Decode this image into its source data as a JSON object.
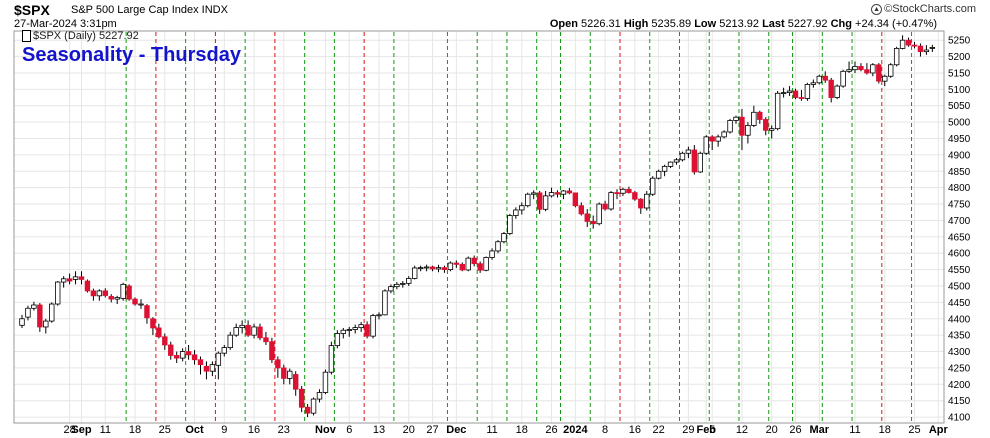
{
  "header": {
    "symbol": "$SPX",
    "description": "S&P 500 Large Cap Index INDX",
    "datetime": "27-Mar-2024 3:31pm",
    "brand": "©StockCharts.com",
    "ohlc": {
      "open_label": "Open",
      "open": "5226.31",
      "high_label": "High",
      "high": "5235.89",
      "low_label": "Low",
      "low": "5213.92",
      "last_label": "Last",
      "last": "5227.92",
      "chg_label": "Chg",
      "chg": "+24.34 (+0.47%)"
    }
  },
  "legend": {
    "label": "$SPX (Daily) 5227.92"
  },
  "overlay_title": "Seasonality - Thursday",
  "colors": {
    "up": "#ffffff",
    "down": "#dd1133",
    "outline": "#000000",
    "green_line": "#119911",
    "red_line": "#dd1111",
    "grid": "#e6e6e6",
    "title": "#1414cc"
  },
  "chart_data": {
    "type": "candlestick",
    "title": "Seasonality - Thursday",
    "series_name": "$SPX (Daily) 5227.92",
    "ylim": [
      4085,
      5275
    ],
    "y_ticks": [
      4100,
      4150,
      4200,
      4250,
      4300,
      4350,
      4400,
      4450,
      4500,
      4550,
      4600,
      4650,
      4700,
      4750,
      4800,
      4850,
      4900,
      4950,
      5000,
      5050,
      5100,
      5150,
      5200,
      5250
    ],
    "x_ticks": [
      {
        "i": 8,
        "label": "28"
      },
      {
        "i": 10,
        "label": "Sep",
        "bold": true
      },
      {
        "i": 14,
        "label": "11"
      },
      {
        "i": 19,
        "label": "18"
      },
      {
        "i": 24,
        "label": "25"
      },
      {
        "i": 29,
        "label": "Oct",
        "bold": true
      },
      {
        "i": 34,
        "label": "9"
      },
      {
        "i": 39,
        "label": "16"
      },
      {
        "i": 44,
        "label": "23"
      },
      {
        "i": 51,
        "label": "Nov",
        "bold": true
      },
      {
        "i": 55,
        "label": "6"
      },
      {
        "i": 60,
        "label": "13"
      },
      {
        "i": 65,
        "label": "20"
      },
      {
        "i": 69,
        "label": "27"
      },
      {
        "i": 73,
        "label": "Dec",
        "bold": true
      },
      {
        "i": 79,
        "label": "11"
      },
      {
        "i": 84,
        "label": "18"
      },
      {
        "i": 89,
        "label": "26"
      },
      {
        "i": 93,
        "label": "2024",
        "bold": true
      },
      {
        "i": 98,
        "label": "8"
      },
      {
        "i": 103,
        "label": "16"
      },
      {
        "i": 107,
        "label": "22"
      },
      {
        "i": 112,
        "label": "29"
      },
      {
        "i": 115,
        "label": "Feb",
        "bold": true
      },
      {
        "i": 116,
        "label": "5"
      },
      {
        "i": 121,
        "label": "12"
      },
      {
        "i": 126,
        "label": "20"
      },
      {
        "i": 130,
        "label": "26"
      },
      {
        "i": 134,
        "label": "Mar",
        "bold": true
      },
      {
        "i": 140,
        "label": "11"
      },
      {
        "i": 145,
        "label": "18"
      },
      {
        "i": 150,
        "label": "25"
      },
      {
        "i": 154,
        "label": "Apr",
        "bold": true
      }
    ],
    "thursday_lines": [
      {
        "i": 17,
        "c": "g"
      },
      {
        "i": 22,
        "c": "r"
      },
      {
        "i": 27,
        "c": "g"
      },
      {
        "i": 32,
        "c": "r"
      },
      {
        "i": 37,
        "c": "g"
      },
      {
        "i": 42,
        "c": "r"
      },
      {
        "i": 47,
        "c": "g"
      },
      {
        "i": 52,
        "c": "g"
      },
      {
        "i": 57,
        "c": "r"
      },
      {
        "i": 62,
        "c": "g"
      },
      {
        "i": 71,
        "c": "g"
      },
      {
        "i": 76,
        "c": "g"
      },
      {
        "i": 81,
        "c": "g"
      },
      {
        "i": 86,
        "c": "g"
      },
      {
        "i": 90,
        "c": "g"
      },
      {
        "i": 95,
        "c": "g"
      },
      {
        "i": 100,
        "c": "r"
      },
      {
        "i": 105,
        "c": "g"
      },
      {
        "i": 110,
        "c": "g"
      },
      {
        "i": 115,
        "c": "g"
      },
      {
        "i": 120,
        "c": "g"
      },
      {
        "i": 125,
        "c": "g"
      },
      {
        "i": 129,
        "c": "g"
      },
      {
        "i": 134,
        "c": "g"
      },
      {
        "i": 139,
        "c": "g"
      },
      {
        "i": 144,
        "c": "r"
      },
      {
        "i": 149,
        "c": "g"
      }
    ],
    "ohlc": [
      [
        4380,
        4412,
        4372,
        4400
      ],
      [
        4405,
        4440,
        4395,
        4432
      ],
      [
        4432,
        4452,
        4425,
        4442
      ],
      [
        4442,
        4448,
        4360,
        4375
      ],
      [
        4375,
        4400,
        4355,
        4393
      ],
      [
        4393,
        4450,
        4388,
        4445
      ],
      [
        4445,
        4515,
        4440,
        4512
      ],
      [
        4512,
        4530,
        4495,
        4522
      ],
      [
        4522,
        4538,
        4505,
        4515
      ],
      [
        4520,
        4545,
        4505,
        4528
      ],
      [
        4528,
        4545,
        4505,
        4520
      ],
      [
        4515,
        4520,
        4480,
        4485
      ],
      [
        4485,
        4492,
        4455,
        4470
      ],
      [
        4470,
        4490,
        4455,
        4485
      ],
      [
        4485,
        4493,
        4465,
        4471
      ],
      [
        4468,
        4475,
        4450,
        4460
      ],
      [
        4460,
        4470,
        4445,
        4465
      ],
      [
        4462,
        4510,
        4455,
        4505
      ],
      [
        4500,
        4505,
        4455,
        4460
      ],
      [
        4460,
        4465,
        4440,
        4445
      ],
      [
        4445,
        4460,
        4430,
        4445
      ],
      [
        4440,
        4445,
        4385,
        4403
      ],
      [
        4400,
        4405,
        4350,
        4372
      ],
      [
        4372,
        4385,
        4340,
        4345
      ],
      [
        4345,
        4355,
        4305,
        4320
      ],
      [
        4320,
        4330,
        4275,
        4288
      ],
      [
        4288,
        4300,
        4265,
        4280
      ],
      [
        4280,
        4310,
        4270,
        4300
      ],
      [
        4300,
        4320,
        4275,
        4290
      ],
      [
        4290,
        4305,
        4260,
        4275
      ],
      [
        4275,
        4285,
        4230,
        4260
      ],
      [
        4255,
        4270,
        4215,
        4240
      ],
      [
        4240,
        4270,
        4225,
        4260
      ],
      [
        4258,
        4300,
        4215,
        4295
      ],
      [
        4295,
        4320,
        4285,
        4312
      ],
      [
        4312,
        4360,
        4305,
        4350
      ],
      [
        4350,
        4385,
        4345,
        4373
      ],
      [
        4373,
        4395,
        4355,
        4380
      ],
      [
        4380,
        4395,
        4345,
        4350
      ],
      [
        4350,
        4385,
        4340,
        4375
      ],
      [
        4375,
        4385,
        4335,
        4342
      ],
      [
        4342,
        4360,
        4320,
        4330
      ],
      [
        4330,
        4342,
        4265,
        4275
      ],
      [
        4275,
        4285,
        4220,
        4250
      ],
      [
        4250,
        4260,
        4200,
        4218
      ],
      [
        4218,
        4248,
        4200,
        4240
      ],
      [
        4230,
        4240,
        4165,
        4185
      ],
      [
        4185,
        4195,
        4115,
        4130
      ],
      [
        4130,
        4140,
        4100,
        4112
      ],
      [
        4112,
        4160,
        4105,
        4155
      ],
      [
        4155,
        4185,
        4145,
        4175
      ],
      [
        4175,
        4245,
        4170,
        4237
      ],
      [
        4237,
        4330,
        4230,
        4318
      ],
      [
        4318,
        4365,
        4310,
        4355
      ],
      [
        4355,
        4372,
        4340,
        4365
      ],
      [
        4365,
        4375,
        4345,
        4367
      ],
      [
        4367,
        4382,
        4355,
        4373
      ],
      [
        4373,
        4390,
        4360,
        4382
      ],
      [
        4382,
        4392,
        4340,
        4347
      ],
      [
        4347,
        4415,
        4340,
        4410
      ],
      [
        4410,
        4420,
        4398,
        4412
      ],
      [
        4412,
        4490,
        4410,
        4485
      ],
      [
        4485,
        4505,
        4478,
        4498
      ],
      [
        4498,
        4512,
        4490,
        4505
      ],
      [
        4505,
        4515,
        4495,
        4508
      ],
      [
        4508,
        4530,
        4500,
        4523
      ],
      [
        4523,
        4562,
        4520,
        4555
      ],
      [
        4555,
        4562,
        4545,
        4556
      ],
      [
        4556,
        4565,
        4545,
        4558
      ],
      [
        4558,
        4562,
        4545,
        4552
      ],
      [
        4552,
        4565,
        4542,
        4556
      ],
      [
        4556,
        4562,
        4540,
        4550
      ],
      [
        4550,
        4575,
        4545,
        4570
      ],
      [
        4570,
        4578,
        4555,
        4566
      ],
      [
        4566,
        4572,
        4545,
        4549
      ],
      [
        4549,
        4590,
        4545,
        4585
      ],
      [
        4585,
        4593,
        4560,
        4568
      ],
      [
        4568,
        4575,
        4540,
        4548
      ],
      [
        4548,
        4590,
        4545,
        4587
      ],
      [
        4587,
        4615,
        4580,
        4607
      ],
      [
        4607,
        4640,
        4600,
        4635
      ],
      [
        4635,
        4665,
        4630,
        4660
      ],
      [
        4660,
        4720,
        4655,
        4715
      ],
      [
        4715,
        4740,
        4705,
        4732
      ],
      [
        4732,
        4755,
        4718,
        4745
      ],
      [
        4745,
        4785,
        4740,
        4780
      ],
      [
        4780,
        4792,
        4765,
        4784
      ],
      [
        4784,
        4790,
        4720,
        4734
      ],
      [
        4734,
        4790,
        4728,
        4775
      ],
      [
        4775,
        4800,
        4770,
        4785
      ],
      [
        4785,
        4792,
        4770,
        4780
      ],
      [
        4780,
        4793,
        4765,
        4790
      ],
      [
        4790,
        4799,
        4780,
        4784
      ],
      [
        4784,
        4785,
        4740,
        4745
      ],
      [
        4745,
        4755,
        4715,
        4720
      ],
      [
        4720,
        4735,
        4680,
        4697
      ],
      [
        4697,
        4715,
        4675,
        4690
      ],
      [
        4690,
        4755,
        4685,
        4750
      ],
      [
        4750,
        4760,
        4730,
        4735
      ],
      [
        4735,
        4790,
        4730,
        4785
      ],
      [
        4785,
        4795,
        4765,
        4783
      ],
      [
        4783,
        4800,
        4775,
        4795
      ],
      [
        4795,
        4803,
        4782,
        4785
      ],
      [
        4785,
        4790,
        4760,
        4765
      ],
      [
        4765,
        4768,
        4720,
        4738
      ],
      [
        4738,
        4790,
        4730,
        4780
      ],
      [
        4780,
        4835,
        4775,
        4829
      ],
      [
        4829,
        4855,
        4825,
        4850
      ],
      [
        4850,
        4870,
        4835,
        4865
      ],
      [
        4865,
        4880,
        4860,
        4878
      ],
      [
        4878,
        4890,
        4870,
        4885
      ],
      [
        4885,
        4910,
        4880,
        4905
      ],
      [
        4905,
        4925,
        4890,
        4915
      ],
      [
        4915,
        4930,
        4840,
        4848
      ],
      [
        4848,
        4910,
        4845,
        4905
      ],
      [
        4905,
        4960,
        4900,
        4955
      ],
      [
        4955,
        4960,
        4915,
        4942
      ],
      [
        4942,
        4962,
        4925,
        4955
      ],
      [
        4955,
        4975,
        4950,
        4970
      ],
      [
        4970,
        5010,
        4965,
        5005
      ],
      [
        5005,
        5020,
        4995,
        5015
      ],
      [
        5015,
        5040,
        4915,
        4960
      ],
      [
        4960,
        5000,
        4935,
        4990
      ],
      [
        4990,
        5050,
        4985,
        5030
      ],
      [
        5030,
        5035,
        4995,
        5008
      ],
      [
        5008,
        5015,
        4960,
        4975
      ],
      [
        4975,
        4990,
        4950,
        4980
      ],
      [
        4980,
        5095,
        4975,
        5088
      ],
      [
        5088,
        5105,
        5075,
        5090
      ],
      [
        5090,
        5110,
        5080,
        5095
      ],
      [
        5095,
        5102,
        5070,
        5075
      ],
      [
        5075,
        5098,
        5065,
        5072
      ],
      [
        5072,
        5120,
        5065,
        5115
      ],
      [
        5115,
        5130,
        5105,
        5120
      ],
      [
        5120,
        5145,
        5115,
        5140
      ],
      [
        5140,
        5155,
        5120,
        5128
      ],
      [
        5128,
        5135,
        5060,
        5075
      ],
      [
        5075,
        5115,
        5070,
        5110
      ],
      [
        5110,
        5160,
        5105,
        5155
      ],
      [
        5155,
        5185,
        5150,
        5160
      ],
      [
        5160,
        5185,
        5150,
        5170
      ],
      [
        5170,
        5180,
        5155,
        5160
      ],
      [
        5160,
        5180,
        5145,
        5150
      ],
      [
        5150,
        5180,
        5140,
        5175
      ],
      [
        5175,
        5180,
        5118,
        5125
      ],
      [
        5125,
        5145,
        5110,
        5140
      ],
      [
        5140,
        5180,
        5135,
        5175
      ],
      [
        5175,
        5230,
        5170,
        5225
      ],
      [
        5225,
        5265,
        5222,
        5250
      ],
      [
        5250,
        5258,
        5230,
        5235
      ],
      [
        5235,
        5245,
        5225,
        5232
      ],
      [
        5232,
        5240,
        5200,
        5215
      ],
      [
        5215,
        5235,
        5205,
        5220
      ],
      [
        5226,
        5236,
        5214,
        5228
      ]
    ]
  }
}
